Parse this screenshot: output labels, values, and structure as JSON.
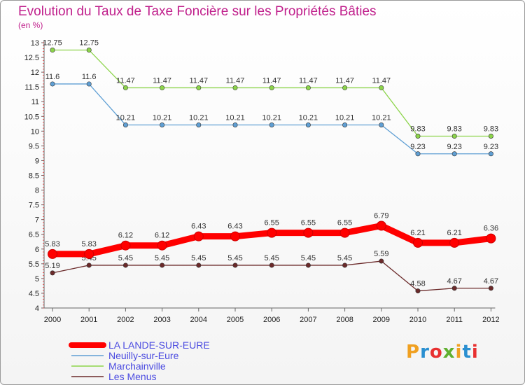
{
  "chart_data": {
    "type": "line",
    "title": "Evolution du Taux de Taxe Foncière sur les Propriétés Bâties",
    "subtitle": "(en %)",
    "categories": [
      "2000",
      "2001",
      "2002",
      "2003",
      "2004",
      "2005",
      "2006",
      "2007",
      "2008",
      "2009",
      "2010",
      "2011",
      "2012"
    ],
    "ylim": [
      4,
      13
    ],
    "yticks": [
      "4",
      "4.5",
      "5",
      "5.5",
      "6",
      "6.5",
      "7",
      "7.5",
      "8",
      "8.5",
      "9",
      "9.5",
      "10",
      "10.5",
      "11",
      "11.5",
      "12",
      "12.5",
      "13"
    ],
    "grid": false,
    "legend_position": "bottom-left",
    "series": [
      {
        "name": "LA LANDE-SUR-EURE",
        "color": "#ff0000",
        "values": [
          5.83,
          5.83,
          6.12,
          6.12,
          6.43,
          6.43,
          6.55,
          6.55,
          6.55,
          6.79,
          6.21,
          6.21,
          6.36
        ],
        "labels": [
          "5.83",
          "5.83",
          "6.12",
          "6.12",
          "6.43",
          "6.43",
          "6.55",
          "6.55",
          "6.55",
          "6.79",
          "6.21",
          "6.21",
          "6.36"
        ]
      },
      {
        "name": "Neuilly-sur-Eure",
        "color": "#5f9fd4",
        "values": [
          11.6,
          11.6,
          10.21,
          10.21,
          10.21,
          10.21,
          10.21,
          10.21,
          10.21,
          10.21,
          9.23,
          9.23,
          9.23
        ],
        "labels": [
          "11.6",
          "11.6",
          "10.21",
          "10.21",
          "10.21",
          "10.21",
          "10.21",
          "10.21",
          "10.21",
          "10.21",
          "9.23",
          "9.23",
          "9.23"
        ]
      },
      {
        "name": "Marchainville",
        "color": "#8cd44a",
        "values": [
          12.75,
          12.75,
          11.47,
          11.47,
          11.47,
          11.47,
          11.47,
          11.47,
          11.47,
          11.47,
          9.83,
          9.83,
          9.83
        ],
        "labels": [
          "12.75",
          "12.75",
          "11.47",
          "11.47",
          "11.47",
          "11.47",
          "11.47",
          "11.47",
          "11.47",
          "11.47",
          "9.83",
          "9.83",
          "9.83"
        ]
      },
      {
        "name": "Les Menus",
        "color": "#6b2a2a",
        "values": [
          5.19,
          5.45,
          5.45,
          5.45,
          5.45,
          5.45,
          5.45,
          5.45,
          5.45,
          5.59,
          4.58,
          4.67,
          4.67
        ],
        "labels": [
          "5.19",
          "5.45",
          "5.45",
          "5.45",
          "5.45",
          "5.45",
          "5.45",
          "5.45",
          "5.45",
          "5.59",
          "4.58",
          "4.67",
          "4.67"
        ]
      }
    ]
  },
  "legend_text_color": "#4a4ae0",
  "title_color": "#c0208c",
  "logo": {
    "text": "Proxiti",
    "colors": [
      "#f0a020",
      "#2a8fd0",
      "#e83030",
      "#60b030",
      "#f0a020",
      "#2a8fd0",
      "#e83030"
    ]
  }
}
